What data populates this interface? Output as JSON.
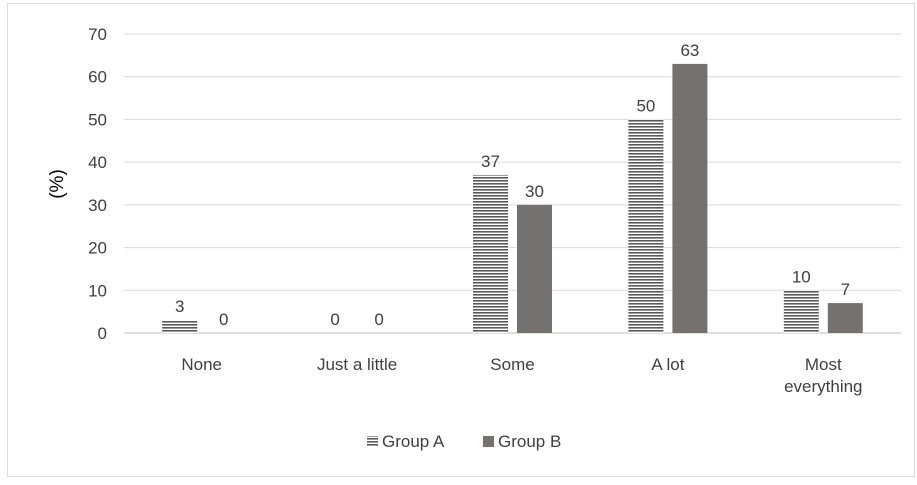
{
  "chart_data": {
    "type": "bar",
    "ylabel": "(%)",
    "ylim": [
      0,
      70
    ],
    "yticks": [
      0,
      10,
      20,
      30,
      40,
      50,
      60,
      70
    ],
    "grid": true,
    "legend_position": "bottom",
    "categories": [
      [
        "None"
      ],
      [
        "Just a little"
      ],
      [
        "Some"
      ],
      [
        "A lot"
      ],
      [
        "Most",
        "everything"
      ]
    ],
    "series": [
      {
        "name": "Group A",
        "values": [
          3,
          0,
          37,
          50,
          10
        ],
        "fill": "pattern-horizontal-lines",
        "color": "#595959"
      },
      {
        "name": "Group B",
        "values": [
          0,
          0,
          30,
          63,
          7
        ],
        "fill": "solid",
        "color": "#757171"
      }
    ]
  }
}
